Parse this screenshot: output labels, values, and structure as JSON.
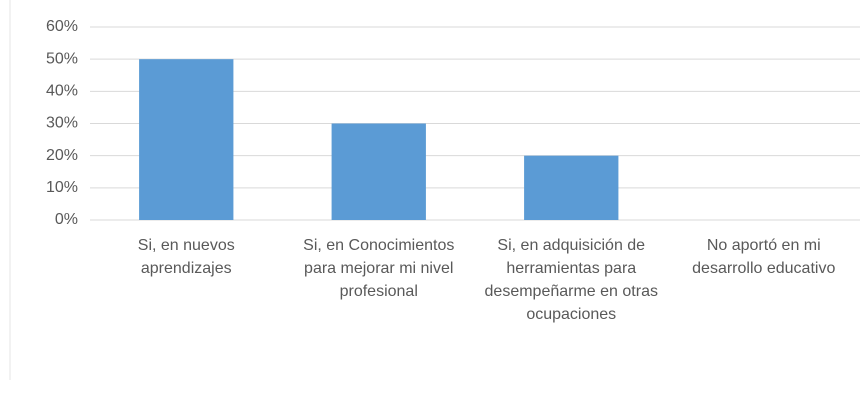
{
  "chart_data": {
    "type": "bar",
    "categories": [
      "Si, en nuevos aprendizajes",
      "Si, en Conocimientos para mejorar mi nivel profesional",
      "Si, en adquisición de herramientas para desempeñarme en otras ocupaciones",
      "No aportó en mi desarrollo educativo"
    ],
    "values": [
      50,
      30,
      20,
      0
    ],
    "color": "#5b9bd5",
    "ylim": [
      0,
      60
    ],
    "yticks": [
      {
        "value": 0,
        "label": "0%"
      },
      {
        "value": 10,
        "label": "10%"
      },
      {
        "value": 20,
        "label": "20%"
      },
      {
        "value": 30,
        "label": "30%"
      },
      {
        "value": 40,
        "label": "40%"
      },
      {
        "value": 50,
        "label": "50%"
      },
      {
        "value": 60,
        "label": "60%"
      }
    ],
    "grid": true
  }
}
